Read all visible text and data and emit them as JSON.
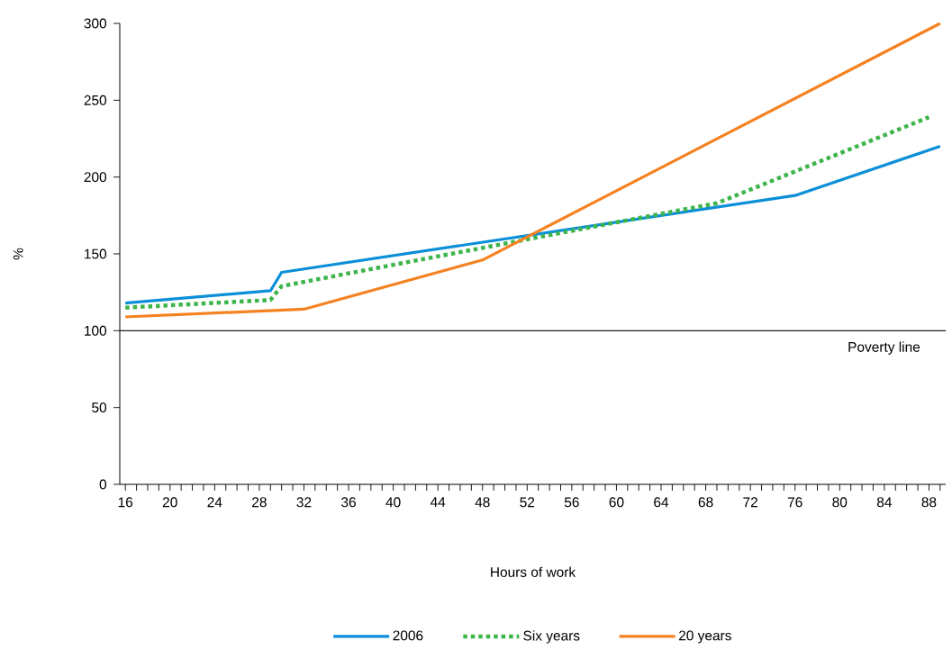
{
  "chart_data": {
    "type": "line",
    "xlabel": "Hours of work",
    "ylabel": "%",
    "xlim": [
      15.5,
      89.5
    ],
    "ylim": [
      0,
      300
    ],
    "yticks": [
      0,
      50,
      100,
      150,
      200,
      250,
      300
    ],
    "xticks": [
      16,
      {
        "value": 17,
        "label": null
      },
      {
        "value": 18,
        "label": null
      },
      {
        "value": 19,
        "label": null
      },
      20,
      {
        "value": 21,
        "label": null
      },
      {
        "value": 22,
        "label": null
      },
      {
        "value": 23,
        "label": null
      },
      24,
      {
        "value": 25,
        "label": null
      },
      {
        "value": 26,
        "label": null
      },
      {
        "value": 27,
        "label": null
      },
      28,
      {
        "value": 29,
        "label": null
      },
      {
        "value": 30,
        "label": null
      },
      {
        "value": 31,
        "label": null
      },
      32,
      {
        "value": 33,
        "label": null
      },
      {
        "value": 34,
        "label": null
      },
      {
        "value": 35,
        "label": null
      },
      36,
      {
        "value": 37,
        "label": null
      },
      {
        "value": 38,
        "label": null
      },
      {
        "value": 39,
        "label": null
      },
      40,
      {
        "value": 41,
        "label": null
      },
      {
        "value": 42,
        "label": null
      },
      {
        "value": 43,
        "label": null
      },
      44,
      {
        "value": 45,
        "label": null
      },
      {
        "value": 46,
        "label": null
      },
      {
        "value": 47,
        "label": null
      },
      48,
      {
        "value": 49,
        "label": null
      },
      {
        "value": 50,
        "label": null
      },
      {
        "value": 51,
        "label": null
      },
      52,
      {
        "value": 53,
        "label": null
      },
      {
        "value": 54,
        "label": null
      },
      {
        "value": 55,
        "label": null
      },
      56,
      {
        "value": 57,
        "label": null
      },
      {
        "value": 58,
        "label": null
      },
      {
        "value": 59,
        "label": null
      },
      60,
      {
        "value": 61,
        "label": null
      },
      {
        "value": 62,
        "label": null
      },
      {
        "value": 63,
        "label": null
      },
      64,
      {
        "value": 65,
        "label": null
      },
      {
        "value": 66,
        "label": null
      },
      {
        "value": 67,
        "label": null
      },
      68,
      {
        "value": 69,
        "label": null
      },
      {
        "value": 70,
        "label": null
      },
      {
        "value": 71,
        "label": null
      },
      72,
      {
        "value": 73,
        "label": null
      },
      {
        "value": 74,
        "label": null
      },
      {
        "value": 75,
        "label": null
      },
      76,
      {
        "value": 77,
        "label": null
      },
      {
        "value": 78,
        "label": null
      },
      {
        "value": 79,
        "label": null
      },
      80,
      {
        "value": 81,
        "label": null
      },
      {
        "value": 82,
        "label": null
      },
      {
        "value": 83,
        "label": null
      },
      84,
      {
        "value": 85,
        "label": null
      },
      {
        "value": 86,
        "label": null
      },
      {
        "value": 87,
        "label": null
      },
      88,
      {
        "value": 89,
        "label": null
      }
    ],
    "series": [
      {
        "name": "2006",
        "color": "#0a8fd8",
        "line_style": "solid",
        "x": [
          16,
          29,
          30,
          76,
          89
        ],
        "values": [
          118,
          126,
          138,
          188,
          220
        ]
      },
      {
        "name": "Six years",
        "color": "#3db54a",
        "line_style": "dotted",
        "x": [
          16,
          29,
          30,
          69,
          88
        ],
        "values": [
          115,
          120,
          129,
          183,
          239
        ]
      },
      {
        "name": "20 years",
        "color": "#f58220",
        "line_style": "solid",
        "x": [
          16,
          32,
          48,
          89
        ],
        "values": [
          109,
          114,
          146,
          300
        ]
      }
    ],
    "ref_lines": [
      {
        "axis": "y",
        "value": 100,
        "label": "Poverty line",
        "color": "#231f20"
      }
    ],
    "legend": "bottom"
  }
}
